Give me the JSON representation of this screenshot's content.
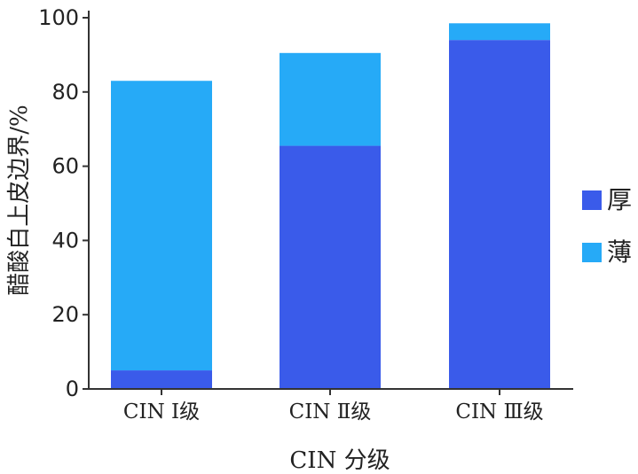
{
  "chart_data": {
    "type": "bar",
    "stacked": true,
    "categories": [
      "CIN Ⅰ级",
      "CIN Ⅱ级",
      "CIN Ⅲ级"
    ],
    "series": [
      {
        "name": "厚",
        "values": [
          5,
          65.5,
          94
        ],
        "color": "#3a5bea"
      },
      {
        "name": "薄",
        "values": [
          78,
          25,
          4.5
        ],
        "color": "#26aaf7"
      }
    ],
    "xlabel": "CIN 分级",
    "ylabel": "醋酸白上皮边界/%",
    "ylim": [
      0,
      100
    ],
    "yticks": [
      0,
      20,
      40,
      60,
      80,
      100
    ],
    "grid": false,
    "legend_position": "right"
  }
}
